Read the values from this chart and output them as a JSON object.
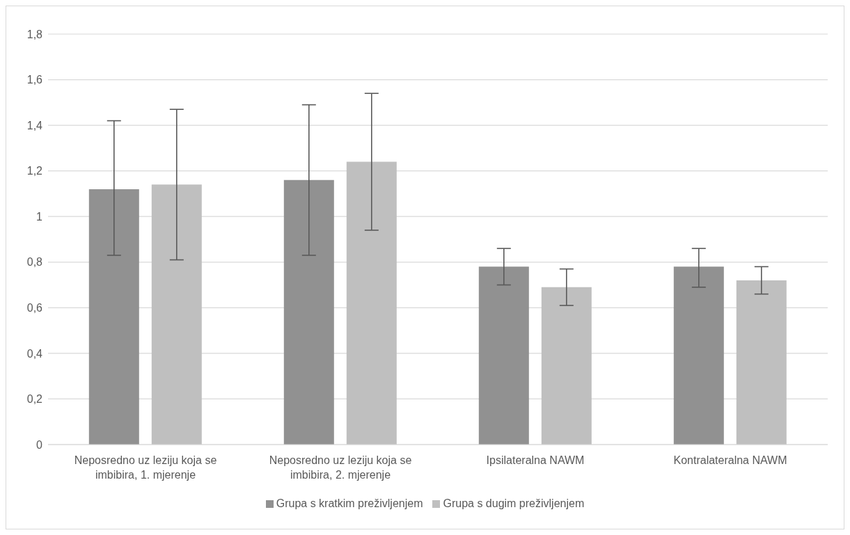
{
  "chart_data": {
    "type": "bar",
    "categories": [
      "Neposredno uz leziju koja se imbibira, 1. mjerenje",
      "Neposredno uz leziju koja se imbibira, 2. mjerenje",
      "Ipsilateralna NAWM",
      "Kontralateralna NAWM"
    ],
    "series": [
      {
        "name": "Grupa s kratkim preživljenjem",
        "color": "#919191",
        "values": [
          1.12,
          1.16,
          0.78,
          0.78
        ],
        "errors": [
          [
            0.83,
            1.42
          ],
          [
            0.83,
            1.49
          ],
          [
            0.7,
            0.86
          ],
          [
            0.69,
            0.86
          ]
        ]
      },
      {
        "name": "Grupa s dugim preživljenjem",
        "color": "#bfbfbf",
        "values": [
          1.14,
          1.24,
          0.69,
          0.72
        ],
        "errors": [
          [
            0.81,
            1.47
          ],
          [
            0.94,
            1.54
          ],
          [
            0.61,
            0.77
          ],
          [
            0.66,
            0.78
          ]
        ]
      }
    ],
    "ylim": [
      0,
      1.8
    ],
    "yticks": [
      0,
      {
        "value": 0.2,
        "label": "0,2"
      },
      {
        "value": 0.4,
        "label": "0,4"
      },
      {
        "value": 0.6,
        "label": "0,6"
      },
      {
        "value": 0.8,
        "label": "0,8"
      },
      1,
      {
        "value": 1.2,
        "label": "1,2"
      },
      {
        "value": 1.4,
        "label": "1,4"
      },
      {
        "value": 1.6,
        "label": "1,6"
      },
      {
        "value": 1.8,
        "label": "1,8"
      }
    ],
    "grid": "y",
    "legend": "bottom"
  }
}
